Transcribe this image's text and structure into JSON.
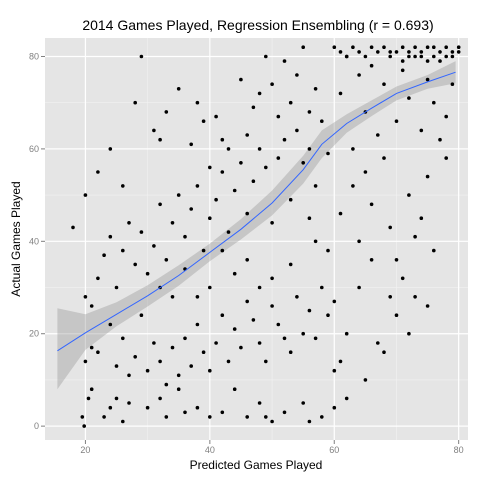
{
  "chart_data": {
    "type": "scatter",
    "title": "2014 Games Played, Regression Ensembling (r = 0.693)",
    "xlabel": "Predicted Games Played",
    "ylabel": "Actual Games Played",
    "xlim": [
      13.5,
      81.5
    ],
    "ylim": [
      -3,
      84
    ],
    "xticks": [
      20,
      40,
      60,
      80
    ],
    "yticks": [
      0,
      20,
      40,
      60,
      80
    ],
    "grid": true,
    "colors": {
      "panel": "#e5e5e5",
      "grid": "#ffffff",
      "point": "#000000",
      "smooth_line": "#3366ff",
      "band": "#999999",
      "tick_label": "#7f7f7f"
    },
    "smooth": {
      "x": [
        15.5,
        20,
        25,
        30,
        35,
        40,
        45,
        50,
        55,
        58,
        62,
        66,
        70,
        75,
        79.5
      ],
      "y": [
        16.3,
        20.2,
        24.2,
        28.2,
        32.6,
        37.6,
        42.6,
        48.3,
        55.5,
        61.0,
        65.5,
        68.8,
        72.0,
        74.5,
        76.6
      ],
      "upper": [
        25.5,
        24.2,
        26.8,
        30.5,
        34.8,
        39.5,
        44.8,
        51.0,
        58.5,
        64.0,
        67.5,
        70.5,
        73.5,
        76.0,
        79.0
      ],
      "lower": [
        8.0,
        16.5,
        21.6,
        25.9,
        30.4,
        35.7,
        40.4,
        45.6,
        52.5,
        58.0,
        63.5,
        67.1,
        70.5,
        73.0,
        74.2
      ]
    },
    "points": [
      [
        19.5,
        2
      ],
      [
        19.8,
        0
      ],
      [
        20.5,
        6
      ],
      [
        21,
        8
      ],
      [
        23,
        2
      ],
      [
        24,
        4
      ],
      [
        25,
        6
      ],
      [
        26,
        1
      ],
      [
        27,
        5
      ],
      [
        30,
        4
      ],
      [
        32,
        6
      ],
      [
        33,
        2
      ],
      [
        35,
        8
      ],
      [
        36,
        3
      ],
      [
        38,
        4
      ],
      [
        40,
        2
      ],
      [
        42,
        3
      ],
      [
        44,
        8
      ],
      [
        46,
        2
      ],
      [
        48,
        5
      ],
      [
        49,
        2
      ],
      [
        50,
        1
      ],
      [
        52,
        3
      ],
      [
        55,
        5
      ],
      [
        56,
        1
      ],
      [
        58,
        2
      ],
      [
        60,
        4
      ],
      [
        62,
        6
      ],
      [
        20,
        14
      ],
      [
        21,
        17
      ],
      [
        22,
        16
      ],
      [
        24,
        22
      ],
      [
        25,
        13
      ],
      [
        26,
        19
      ],
      [
        27,
        11
      ],
      [
        28,
        15
      ],
      [
        29,
        24
      ],
      [
        30,
        12
      ],
      [
        31,
        18
      ],
      [
        32,
        14
      ],
      [
        33,
        9
      ],
      [
        34,
        17
      ],
      [
        35,
        11
      ],
      [
        36,
        19
      ],
      [
        37,
        13
      ],
      [
        38,
        22
      ],
      [
        39,
        16
      ],
      [
        40,
        12
      ],
      [
        41,
        18
      ],
      [
        42,
        24
      ],
      [
        43,
        14
      ],
      [
        44,
        21
      ],
      [
        45,
        17
      ],
      [
        46,
        27
      ],
      [
        47,
        23
      ],
      [
        48,
        18
      ],
      [
        49,
        14
      ],
      [
        50,
        26
      ],
      [
        51,
        22
      ],
      [
        52,
        19
      ],
      [
        53,
        16
      ],
      [
        54,
        28
      ],
      [
        55,
        20
      ],
      [
        56,
        25
      ],
      [
        57,
        19
      ],
      [
        58,
        30
      ],
      [
        59,
        24
      ],
      [
        60,
        27
      ],
      [
        20,
        28
      ],
      [
        21,
        26
      ],
      [
        22,
        32
      ],
      [
        23,
        37
      ],
      [
        24,
        41
      ],
      [
        25,
        30
      ],
      [
        26,
        38
      ],
      [
        27,
        44
      ],
      [
        28,
        35
      ],
      [
        29,
        42
      ],
      [
        30,
        33
      ],
      [
        31,
        39
      ],
      [
        32,
        48
      ],
      [
        33,
        36
      ],
      [
        34,
        44
      ],
      [
        35,
        50
      ],
      [
        36,
        41
      ],
      [
        37,
        47
      ],
      [
        38,
        52
      ],
      [
        39,
        38
      ],
      [
        40,
        45
      ],
      [
        41,
        49
      ],
      [
        42,
        55
      ],
      [
        43,
        42
      ],
      [
        44,
        51
      ],
      [
        45,
        57
      ],
      [
        46,
        46
      ],
      [
        47,
        53
      ],
      [
        48,
        60
      ],
      [
        49,
        56
      ],
      [
        50,
        44
      ],
      [
        51,
        58
      ],
      [
        52,
        62
      ],
      [
        53,
        49
      ],
      [
        54,
        64
      ],
      [
        55,
        57
      ],
      [
        56,
        60
      ],
      [
        57,
        52
      ],
      [
        58,
        66
      ],
      [
        59,
        59
      ],
      [
        18,
        43
      ],
      [
        20,
        50
      ],
      [
        22,
        55
      ],
      [
        24,
        60
      ],
      [
        26,
        52
      ],
      [
        28,
        70
      ],
      [
        29,
        80
      ],
      [
        31,
        64
      ],
      [
        32,
        62
      ],
      [
        33,
        68
      ],
      [
        35,
        73
      ],
      [
        37,
        61
      ],
      [
        38,
        70
      ],
      [
        39,
        66
      ],
      [
        40,
        56
      ],
      [
        41,
        67
      ],
      [
        42,
        62
      ],
      [
        43,
        60
      ],
      [
        45,
        75
      ],
      [
        46,
        63
      ],
      [
        47,
        69
      ],
      [
        48,
        72
      ],
      [
        49,
        80
      ],
      [
        50,
        74
      ],
      [
        51,
        67
      ],
      [
        52,
        79
      ],
      [
        53,
        70
      ],
      [
        54,
        76
      ],
      [
        55,
        82
      ],
      [
        56,
        68
      ],
      [
        57,
        73
      ],
      [
        61,
        72
      ],
      [
        62,
        80
      ],
      [
        63,
        60
      ],
      [
        64,
        76
      ],
      [
        65,
        68
      ],
      [
        66,
        78
      ],
      [
        67,
        63
      ],
      [
        68,
        74
      ],
      [
        69,
        81
      ],
      [
        70,
        66
      ],
      [
        71,
        77
      ],
      [
        72,
        71
      ],
      [
        73,
        80
      ],
      [
        74,
        64
      ],
      [
        75,
        75
      ],
      [
        76,
        70
      ],
      [
        77,
        79
      ],
      [
        78,
        67
      ],
      [
        79,
        74
      ],
      [
        61,
        46
      ],
      [
        63,
        52
      ],
      [
        64,
        40
      ],
      [
        65,
        55
      ],
      [
        66,
        48
      ],
      [
        68,
        58
      ],
      [
        69,
        43
      ],
      [
        70,
        36
      ],
      [
        72,
        50
      ],
      [
        73,
        41
      ],
      [
        74,
        45
      ],
      [
        75,
        54
      ],
      [
        76,
        38
      ],
      [
        77,
        62
      ],
      [
        78,
        58
      ],
      [
        60,
        82
      ],
      [
        61,
        81
      ],
      [
        62,
        80
      ],
      [
        63,
        82
      ],
      [
        64,
        81
      ],
      [
        65,
        80
      ],
      [
        66,
        82
      ],
      [
        67,
        81
      ],
      [
        68,
        82
      ],
      [
        69,
        80
      ],
      [
        70,
        81
      ],
      [
        71,
        82
      ],
      [
        72,
        81
      ],
      [
        73,
        82
      ],
      [
        74,
        81
      ],
      [
        75,
        82
      ],
      [
        76,
        80
      ],
      [
        77,
        81
      ],
      [
        78,
        82
      ],
      [
        79,
        81
      ],
      [
        80,
        82
      ],
      [
        72,
        80
      ],
      [
        74,
        80
      ],
      [
        76,
        82
      ],
      [
        78,
        80
      ],
      [
        80,
        81
      ],
      [
        79,
        80
      ],
      [
        75,
        79
      ],
      [
        71,
        79
      ],
      [
        65,
        10
      ],
      [
        68,
        16
      ],
      [
        70,
        24
      ],
      [
        72,
        20
      ],
      [
        64,
        30
      ],
      [
        66,
        36
      ],
      [
        71,
        32
      ],
      [
        73,
        28
      ],
      [
        75,
        26
      ],
      [
        62,
        20
      ],
      [
        67,
        18
      ],
      [
        69,
        28
      ],
      [
        60,
        12
      ],
      [
        61,
        14
      ],
      [
        59,
        38
      ],
      [
        57,
        40
      ],
      [
        56,
        45
      ],
      [
        53,
        35
      ],
      [
        50,
        32
      ],
      [
        48,
        30
      ],
      [
        46,
        36
      ],
      [
        44,
        33
      ],
      [
        42,
        38
      ],
      [
        40,
        30
      ],
      [
        38,
        28
      ],
      [
        36,
        34
      ],
      [
        34,
        28
      ],
      [
        32,
        30
      ]
    ]
  }
}
